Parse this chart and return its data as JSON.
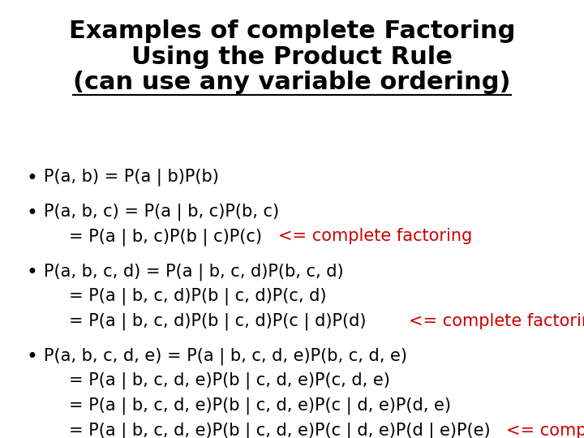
{
  "title_lines": [
    "Examples of complete Factoring",
    "Using the Product Rule",
    "(can use any variable ordering)"
  ],
  "title_color": "#000000",
  "title_fontsize": 22,
  "bg_color": "#ffffff",
  "bullet_color": "#000000",
  "red_color": "#cc0000",
  "font_size_body": 15,
  "bullets": [
    {
      "lines": [
        {
          "text": "P(a, b) = P(a | b)P(b)",
          "color": "black"
        }
      ]
    },
    {
      "lines": [
        {
          "text": "P(a, b, c) = P(a | b, c)P(b, c)",
          "color": "black"
        },
        {
          "text_black": "= P(a | b, c)P(b | c)P(c)   ",
          "text_red": "<= complete factoring",
          "color": "mixed"
        }
      ]
    },
    {
      "lines": [
        {
          "text": "P(a, b, c, d) = P(a | b, c, d)P(b, c, d)",
          "color": "black"
        },
        {
          "text": "= P(a | b, c, d)P(b | c, d)P(c, d)",
          "color": "black"
        },
        {
          "text_black": "= P(a | b, c, d)P(b | c, d)P(c | d)P(d)        ",
          "text_red": "<= complete factoring",
          "color": "mixed"
        }
      ]
    },
    {
      "lines": [
        {
          "text": "P(a, b, c, d, e) = P(a | b, c, d, e)P(b, c, d, e)",
          "color": "black"
        },
        {
          "text": "= P(a | b, c, d, e)P(b | c, d, e)P(c, d, e)",
          "color": "black"
        },
        {
          "text": "= P(a | b, c, d, e)P(b | c, d, e)P(c | d, e)P(d, e)",
          "color": "black"
        },
        {
          "text_black": "= P(a | b, c, d, e)P(b | c, d, e)P(c | d, e)P(d | e)P(e)   ",
          "text_red": "<= complete",
          "color": "mixed"
        }
      ]
    }
  ]
}
